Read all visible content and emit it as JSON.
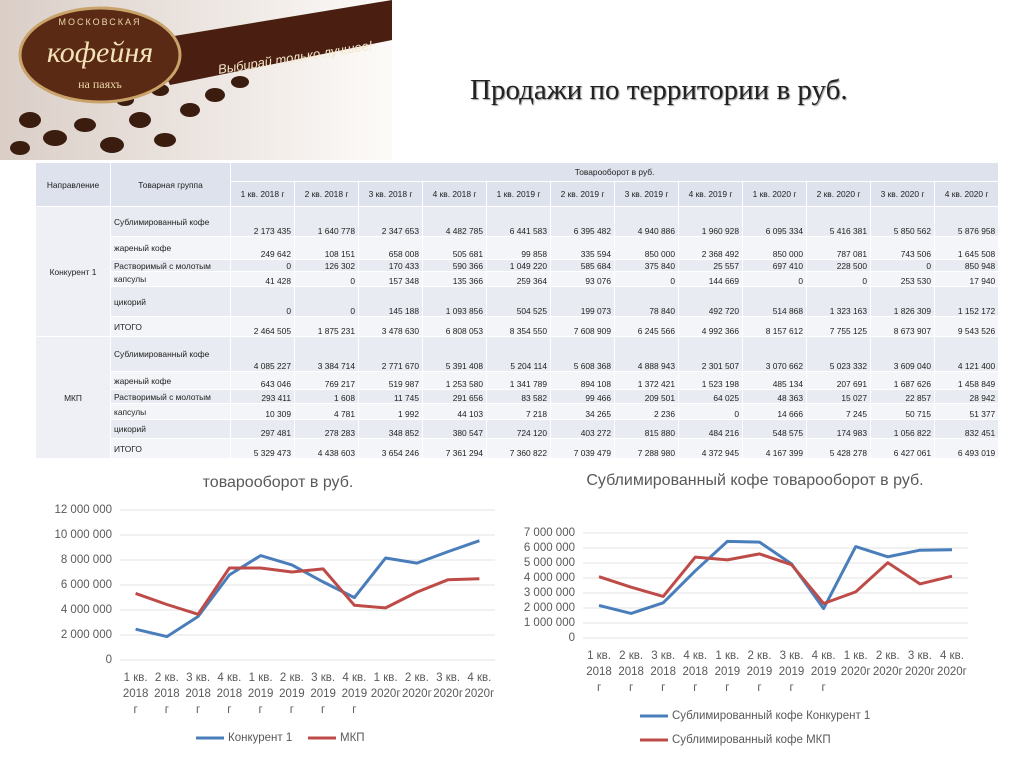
{
  "header": {
    "title": "Продажи по территории в руб.",
    "logo": {
      "top": "МОСКОВСКАЯ",
      "name": "кофейня",
      "bottom": "на паяхъ",
      "slogan": "Выбирай только лучшее!"
    }
  },
  "table": {
    "head": [
      "Направление",
      "Товарная группа",
      "Товарооборот в руб."
    ],
    "periods": [
      "1 кв. 2018 г",
      "2 кв. 2018 г",
      "3 кв. 2018 г",
      "4 кв. 2018 г",
      "1 кв. 2019 г",
      "2 кв. 2019 г",
      "3 кв. 2019 г",
      "4 кв. 2019 г",
      "1 кв. 2020 г",
      "2 кв. 2020 г",
      "3 кв. 2020 г",
      "4 кв. 2020 г"
    ],
    "groups": [
      {
        "name": "Конкурент 1",
        "rows": [
          {
            "product": "Сублимированный кофе",
            "values": [
              "2 173 435",
              "1 640 778",
              "2 347 653",
              "4 482 785",
              "6 441 583",
              "6 395 482",
              "4 940 886",
              "1 960 928",
              "6 095 334",
              "5 416 381",
              "5 850 562",
              "5 876 958"
            ]
          },
          {
            "product": "жареный кофе",
            "values": [
              "249 642",
              "108 151",
              "658 008",
              "505 681",
              "99 858",
              "335 594",
              "850 000",
              "2 368 492",
              "850 000",
              "787 081",
              "743 506",
              "1 645 508"
            ]
          },
          {
            "product": "Растворимый с молотым",
            "values": [
              "0",
              "126 302",
              "170 433",
              "590 366",
              "1 049 220",
              "585 684",
              "375 840",
              "25 557",
              "697 410",
              "228 500",
              "0",
              "850 948"
            ]
          },
          {
            "product": "капсулы",
            "values": [
              "41 428",
              "0",
              "157 348",
              "135 366",
              "259 364",
              "93 076",
              "0",
              "144 669",
              "0",
              "0",
              "253 530",
              "17 940"
            ]
          },
          {
            "product": "цикорий",
            "values": [
              "0",
              "0",
              "145 188",
              "1 093 856",
              "504 525",
              "199 073",
              "78 840",
              "492 720",
              "514 868",
              "1 323 163",
              "1 826 309",
              "1 152 172"
            ]
          },
          {
            "product": "ИТОГО",
            "values": [
              "2 464 505",
              "1 875 231",
              "3 478 630",
              "6 808 053",
              "8 354 550",
              "7 608 909",
              "6 245 566",
              "4 992 366",
              "8 157 612",
              "7 755 125",
              "8 673 907",
              "9 543 526"
            ]
          }
        ]
      },
      {
        "name": "МКП",
        "rows": [
          {
            "product": "Сублимированный кофе",
            "values": [
              "4 085 227",
              "3 384 714",
              "2 771 670",
              "5 391 408",
              "5 204 114",
              "5 608 368",
              "4 888 943",
              "2 301 507",
              "3 070 662",
              "5 023 332",
              "3 609 040",
              "4 121 400"
            ]
          },
          {
            "product": "жареный кофе",
            "values": [
              "643 046",
              "769 217",
              "519 987",
              "1 253 580",
              "1 341 789",
              "894 108",
              "1 372 421",
              "1 523 198",
              "485 134",
              "207 691",
              "1 687 626",
              "1 458 849"
            ]
          },
          {
            "product": "Растворимый с молотым",
            "values": [
              "293 411",
              "1 608",
              "11 745",
              "291 656",
              "83 582",
              "99 466",
              "209 501",
              "64 025",
              "48 363",
              "15 027",
              "22 857",
              "28 942"
            ]
          },
          {
            "product": "капсулы",
            "values": [
              "10 309",
              "4 781",
              "1 992",
              "44 103",
              "7 218",
              "34 265",
              "2 236",
              "0",
              "14 666",
              "7 245",
              "50 715",
              "51 377"
            ]
          },
          {
            "product": "цикорий",
            "values": [
              "297 481",
              "278 283",
              "348 852",
              "380 547",
              "724 120",
              "403 272",
              "815 880",
              "484 216",
              "548 575",
              "174 983",
              "1 056 822",
              "832 451"
            ]
          },
          {
            "product": "ИТОГО",
            "values": [
              "5 329 473",
              "4 438 603",
              "3 654 246",
              "7 361 294",
              "7 360 822",
              "7 039 479",
              "7 288 980",
              "4 372 945",
              "4 167 399",
              "5 428 278",
              "6 427 061",
              "6 493 019"
            ]
          }
        ]
      }
    ]
  },
  "chart_data": [
    {
      "type": "line",
      "title": "товарооборот в руб.",
      "categories": [
        "1 кв. 2018 г",
        "2 кв. 2018 г",
        "3 кв. 2018 г",
        "4 кв. 2018 г",
        "1 кв. 2019 г",
        "2 кв. 2019 г",
        "3 кв. 2019 г",
        "4 кв. 2019 г",
        "1 кв. 2020г",
        "2 кв. 2020г",
        "3 кв. 2020г",
        "4 кв. 2020г"
      ],
      "series": [
        {
          "name": "Конкурент 1",
          "color": "#4a7ebb",
          "values": [
            2464505,
            1875231,
            3478630,
            6808053,
            8354550,
            7608909,
            6245566,
            4992366,
            8157612,
            7755125,
            8673907,
            9543526
          ]
        },
        {
          "name": "МКП",
          "color": "#be4b48",
          "values": [
            5329473,
            4438603,
            3654246,
            7361294,
            7360822,
            7039479,
            7288980,
            4372945,
            4167399,
            5428278,
            6427061,
            6493019
          ]
        }
      ],
      "ylim": [
        0,
        12000000
      ],
      "yticks": [
        0,
        {
          "value": 2000000,
          "label": "2 000 000"
        },
        {
          "value": 4000000,
          "label": "4 000 000"
        },
        {
          "value": 6000000,
          "label": "6 000 000"
        },
        {
          "value": 8000000,
          "label": "8 000 000"
        },
        {
          "value": 10000000,
          "label": "10 000 000"
        },
        {
          "value": 12000000,
          "label": "12 000 000"
        }
      ],
      "grid": true,
      "legend": "bottom"
    },
    {
      "type": "line",
      "title": "Сублимированный кофе товарооборот в руб.",
      "categories": [
        "1 кв. 2018 г",
        "2 кв. 2018 г",
        "3 кв. 2018 г",
        "4 кв. 2018 г",
        "1 кв. 2019 г",
        "2 кв. 2019 г",
        "3 кв. 2019 г",
        "4 кв. 2019 г",
        "1 кв. 2020г",
        "2 кв. 2020г",
        "3 кв. 2020г",
        "4 кв. 2020г"
      ],
      "series": [
        {
          "name": "Сублимированный кофе Конкурент 1",
          "color": "#4a7ebb",
          "values": [
            2173435,
            1640778,
            2347653,
            4482785,
            6441583,
            6395482,
            4940886,
            1960928,
            6095334,
            5416381,
            5850562,
            5876958
          ]
        },
        {
          "name": "Сублимированный кофе МКП",
          "color": "#be4b48",
          "values": [
            4085227,
            3384714,
            2771670,
            5391408,
            5204114,
            5608368,
            4888943,
            2301507,
            3070662,
            5023332,
            3609040,
            4121400
          ]
        }
      ],
      "ylim": [
        0,
        7000000
      ],
      "yticks": [
        0,
        {
          "value": 1000000,
          "label": "1 000 000"
        },
        {
          "value": 2000000,
          "label": "2 000 000"
        },
        {
          "value": 3000000,
          "label": "3 000 000"
        },
        {
          "value": 4000000,
          "label": "4 000 000"
        },
        {
          "value": 5000000,
          "label": "5 000 000"
        },
        {
          "value": 6000000,
          "label": "6 000 000"
        },
        {
          "value": 7000000,
          "label": "7 000 000"
        }
      ],
      "grid": true,
      "legend": "bottom"
    }
  ]
}
